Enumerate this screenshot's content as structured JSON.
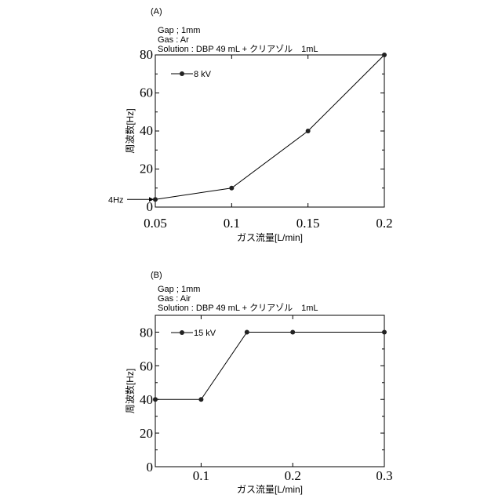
{
  "chart_data": [
    {
      "type": "line",
      "panel_label": "(A)",
      "annotations": [
        "Gap ; 1mm",
        "Gas : Ar",
        "Solution : DBP 49 mL + クリアゾル　1mL"
      ],
      "callout": "4Hz",
      "xlabel": "ガス流量[L/min]",
      "ylabel": "周波数[Hz]",
      "xlim": [
        0.05,
        0.2
      ],
      "ylim": [
        0,
        80
      ],
      "xticks": [
        "0.05",
        "0.1",
        "0.15",
        "0.2"
      ],
      "yticks": [
        "0",
        "20",
        "40",
        "60",
        "80"
      ],
      "legend_placement": "top-left",
      "grid": false,
      "series": [
        {
          "name": "8 kV",
          "x": [
            0.05,
            0.1,
            0.15,
            0.2
          ],
          "y": [
            4,
            10,
            40,
            80
          ]
        }
      ]
    },
    {
      "type": "line",
      "panel_label": "(B)",
      "annotations": [
        "Gap ; 1mm",
        "Gas : Air",
        "Solution : DBP 49 mL + クリアゾル　1mL"
      ],
      "xlabel": "ガス流量[L/min]",
      "ylabel": "周波数[Hz]",
      "xlim": [
        0.05,
        0.3
      ],
      "ylim": [
        0,
        90
      ],
      "xticks": [
        "0.1",
        "0.2",
        "0.3"
      ],
      "yticks": [
        "0",
        "20",
        "40",
        "60",
        "80"
      ],
      "legend_placement": "top-left",
      "grid": false,
      "series": [
        {
          "name": "15 kV",
          "x": [
            0.05,
            0.1,
            0.15,
            0.2,
            0.3
          ],
          "y": [
            40,
            40,
            80,
            80,
            80
          ]
        }
      ]
    }
  ]
}
